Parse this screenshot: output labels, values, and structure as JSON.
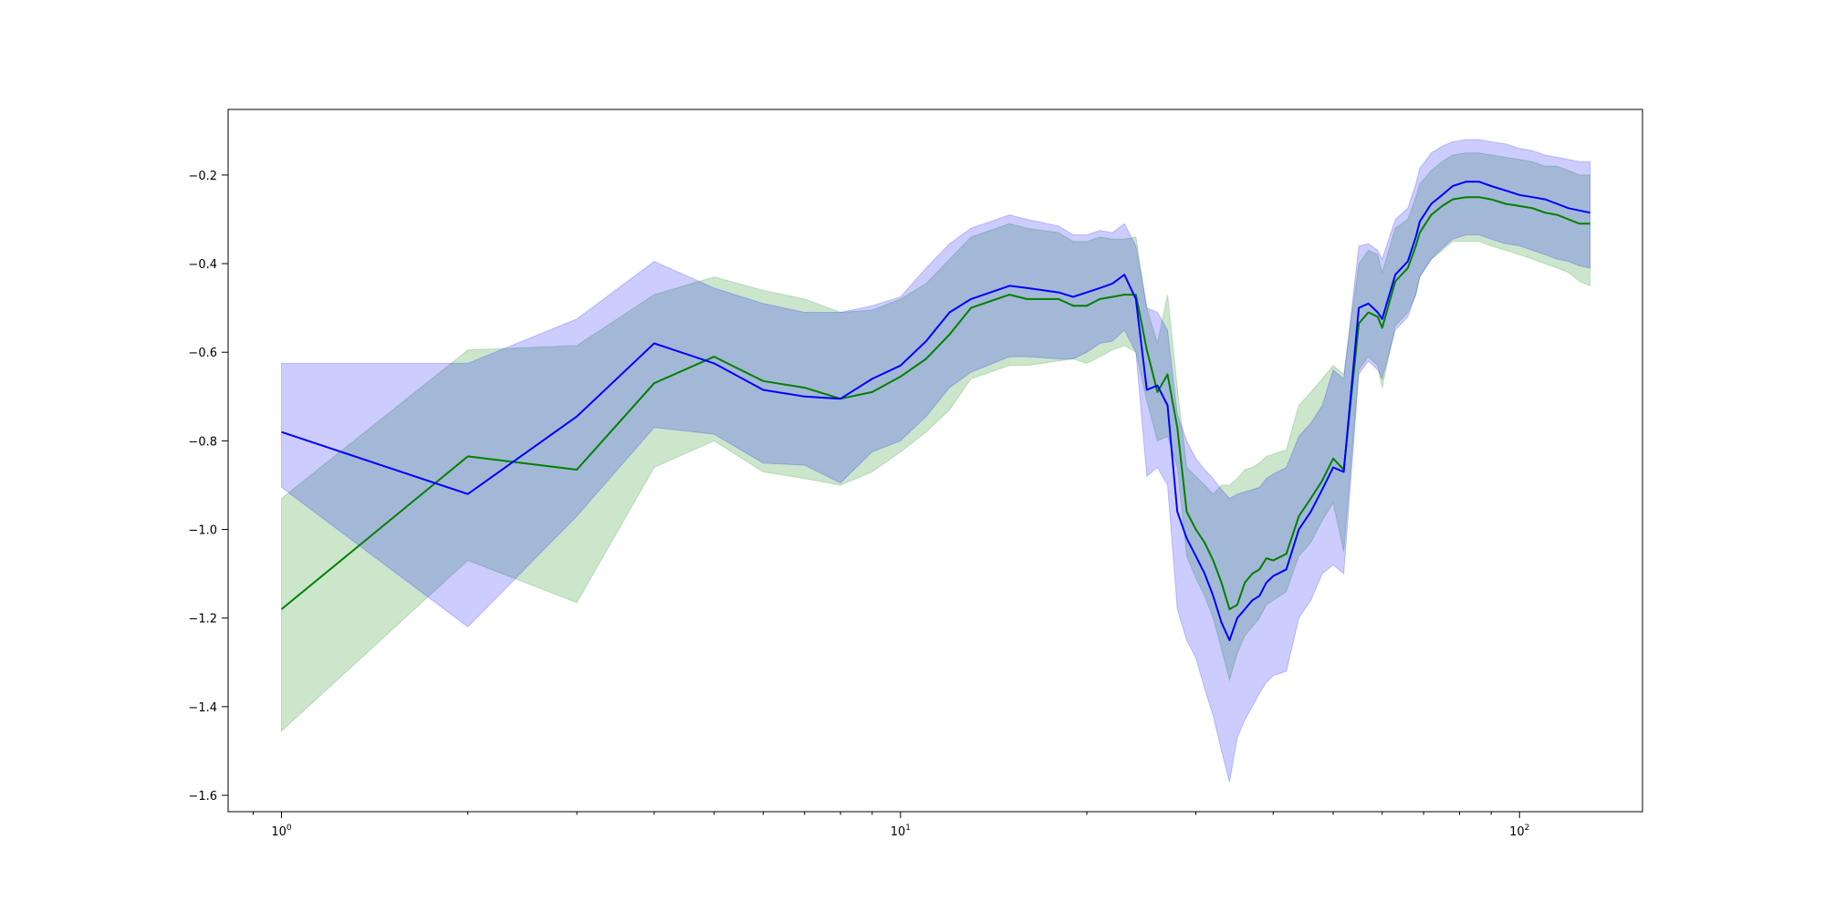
{
  "chart_data": {
    "type": "line",
    "title": "",
    "xlabel": "",
    "ylabel": "",
    "xscale": "log",
    "xlim": [
      0.82,
      158
    ],
    "ylim": [
      -1.637,
      -0.052
    ],
    "grid": false,
    "legend": "none",
    "x_ticks": [
      {
        "value": 1,
        "label": "10^0",
        "base": "10",
        "exp": "0"
      },
      {
        "value": 10,
        "label": "10^1",
        "base": "10",
        "exp": "1"
      },
      {
        "value": 100,
        "label": "10^2",
        "base": "10",
        "exp": "2"
      }
    ],
    "y_ticks": [
      {
        "value": -0.2,
        "label": "−0.2"
      },
      {
        "value": -0.4,
        "label": "−0.4"
      },
      {
        "value": -0.6,
        "label": "−0.6"
      },
      {
        "value": -0.8,
        "label": "−0.8"
      },
      {
        "value": -1.0,
        "label": "−1.0"
      },
      {
        "value": -1.2,
        "label": "−1.2"
      },
      {
        "value": -1.4,
        "label": "−1.4"
      },
      {
        "value": -1.6,
        "label": "−1.6"
      }
    ],
    "series": [
      {
        "color": "#008000",
        "band_color": "#008000",
        "x": [
          1,
          2,
          3,
          4,
          5,
          6,
          7,
          8,
          9,
          10,
          11,
          12,
          13,
          15,
          16,
          18,
          19,
          20,
          21,
          22,
          23,
          24,
          25,
          26,
          27,
          28,
          29,
          30,
          31,
          32,
          33,
          34,
          35,
          36,
          37,
          38,
          39,
          40,
          42,
          44,
          46,
          48,
          50,
          52,
          55,
          57,
          59,
          60,
          63,
          66,
          68,
          69,
          72,
          75,
          78,
          82,
          86,
          90,
          95,
          100,
          105,
          110,
          115,
          120,
          125,
          130
        ],
        "y": [
          -1.18,
          -0.835,
          -0.865,
          -0.67,
          -0.61,
          -0.665,
          -0.68,
          -0.705,
          -0.69,
          -0.655,
          -0.615,
          -0.56,
          -0.5,
          -0.47,
          -0.48,
          -0.48,
          -0.495,
          -0.495,
          -0.48,
          -0.475,
          -0.47,
          -0.47,
          -0.595,
          -0.69,
          -0.65,
          -0.77,
          -0.96,
          -1.0,
          -1.03,
          -1.07,
          -1.12,
          -1.18,
          -1.17,
          -1.12,
          -1.1,
          -1.09,
          -1.065,
          -1.07,
          -1.055,
          -0.97,
          -0.93,
          -0.89,
          -0.84,
          -0.865,
          -0.535,
          -0.51,
          -0.52,
          -0.545,
          -0.44,
          -0.41,
          -0.36,
          -0.33,
          -0.29,
          -0.27,
          -0.255,
          -0.25,
          -0.25,
          -0.255,
          -0.265,
          -0.27,
          -0.275,
          -0.285,
          -0.29,
          -0.3,
          -0.31,
          -0.31
        ],
        "lower": [
          -1.455,
          -1.07,
          -1.165,
          -0.86,
          -0.8,
          -0.87,
          -0.885,
          -0.9,
          -0.87,
          -0.825,
          -0.78,
          -0.73,
          -0.66,
          -0.63,
          -0.63,
          -0.62,
          -0.615,
          -0.625,
          -0.61,
          -0.595,
          -0.585,
          -0.6,
          -0.71,
          -0.8,
          -0.79,
          -0.86,
          -1.06,
          -1.11,
          -1.15,
          -1.2,
          -1.27,
          -1.34,
          -1.28,
          -1.24,
          -1.22,
          -1.2,
          -1.17,
          -1.16,
          -1.14,
          -1.06,
          -1.03,
          -0.98,
          -0.94,
          -1.05,
          -0.64,
          -0.61,
          -0.63,
          -0.68,
          -0.54,
          -0.51,
          -0.47,
          -0.43,
          -0.39,
          -0.37,
          -0.35,
          -0.35,
          -0.35,
          -0.36,
          -0.37,
          -0.38,
          -0.39,
          -0.4,
          -0.41,
          -0.42,
          -0.44,
          -0.45
        ],
        "upper": [
          -0.93,
          -0.595,
          -0.585,
          -0.47,
          -0.43,
          -0.46,
          -0.48,
          -0.51,
          -0.505,
          -0.48,
          -0.445,
          -0.39,
          -0.34,
          -0.31,
          -0.32,
          -0.33,
          -0.35,
          -0.35,
          -0.34,
          -0.345,
          -0.345,
          -0.34,
          -0.5,
          -0.58,
          -0.47,
          -0.68,
          -0.86,
          -0.88,
          -0.9,
          -0.92,
          -0.9,
          -0.9,
          -0.885,
          -0.865,
          -0.86,
          -0.85,
          -0.835,
          -0.83,
          -0.82,
          -0.72,
          -0.69,
          -0.66,
          -0.63,
          -0.65,
          -0.4,
          -0.37,
          -0.38,
          -0.42,
          -0.32,
          -0.3,
          -0.25,
          -0.22,
          -0.19,
          -0.17,
          -0.155,
          -0.15,
          -0.15,
          -0.155,
          -0.16,
          -0.165,
          -0.17,
          -0.18,
          -0.18,
          -0.19,
          -0.2,
          -0.2
        ]
      },
      {
        "color": "#0000ff",
        "band_color": "#0000ff",
        "x": [
          1,
          2,
          3,
          4,
          5,
          6,
          7,
          8,
          9,
          10,
          11,
          12,
          13,
          15,
          16,
          18,
          19,
          20,
          21,
          22,
          23,
          24,
          25,
          26,
          27,
          28,
          29,
          30,
          31,
          32,
          33,
          34,
          35,
          36,
          37,
          38,
          39,
          40,
          42,
          44,
          46,
          48,
          50,
          52,
          55,
          57,
          59,
          60,
          63,
          66,
          68,
          69,
          72,
          75,
          78,
          82,
          86,
          90,
          95,
          100,
          105,
          110,
          115,
          120,
          125,
          130
        ],
        "y": [
          -0.78,
          -0.92,
          -0.745,
          -0.58,
          -0.625,
          -0.685,
          -0.7,
          -0.705,
          -0.66,
          -0.63,
          -0.575,
          -0.51,
          -0.48,
          -0.45,
          -0.455,
          -0.465,
          -0.475,
          -0.465,
          -0.455,
          -0.445,
          -0.425,
          -0.48,
          -0.685,
          -0.675,
          -0.72,
          -0.96,
          -1.02,
          -1.06,
          -1.1,
          -1.15,
          -1.21,
          -1.25,
          -1.2,
          -1.18,
          -1.16,
          -1.15,
          -1.12,
          -1.105,
          -1.09,
          -1.0,
          -0.96,
          -0.91,
          -0.86,
          -0.87,
          -0.5,
          -0.49,
          -0.51,
          -0.525,
          -0.425,
          -0.395,
          -0.34,
          -0.305,
          -0.265,
          -0.245,
          -0.225,
          -0.215,
          -0.215,
          -0.225,
          -0.235,
          -0.245,
          -0.25,
          -0.255,
          -0.265,
          -0.275,
          -0.28,
          -0.285
        ],
        "lower": [
          -0.905,
          -1.22,
          -0.97,
          -0.77,
          -0.785,
          -0.85,
          -0.855,
          -0.895,
          -0.825,
          -0.8,
          -0.745,
          -0.68,
          -0.645,
          -0.61,
          -0.61,
          -0.615,
          -0.615,
          -0.6,
          -0.58,
          -0.575,
          -0.55,
          -0.6,
          -0.88,
          -0.86,
          -0.9,
          -1.18,
          -1.25,
          -1.29,
          -1.36,
          -1.42,
          -1.5,
          -1.57,
          -1.47,
          -1.43,
          -1.4,
          -1.37,
          -1.345,
          -1.33,
          -1.32,
          -1.2,
          -1.16,
          -1.1,
          -1.08,
          -1.1,
          -0.65,
          -0.62,
          -0.64,
          -0.66,
          -0.55,
          -0.52,
          -0.47,
          -0.43,
          -0.39,
          -0.365,
          -0.345,
          -0.335,
          -0.335,
          -0.345,
          -0.355,
          -0.36,
          -0.37,
          -0.38,
          -0.39,
          -0.395,
          -0.405,
          -0.41
        ],
        "upper": [
          -0.625,
          -0.625,
          -0.525,
          -0.395,
          -0.455,
          -0.49,
          -0.51,
          -0.51,
          -0.495,
          -0.475,
          -0.41,
          -0.355,
          -0.32,
          -0.29,
          -0.3,
          -0.315,
          -0.335,
          -0.335,
          -0.325,
          -0.33,
          -0.31,
          -0.36,
          -0.5,
          -0.51,
          -0.55,
          -0.74,
          -0.8,
          -0.84,
          -0.865,
          -0.885,
          -0.91,
          -0.93,
          -0.92,
          -0.915,
          -0.91,
          -0.905,
          -0.885,
          -0.875,
          -0.86,
          -0.79,
          -0.76,
          -0.72,
          -0.64,
          -0.66,
          -0.36,
          -0.355,
          -0.37,
          -0.39,
          -0.3,
          -0.275,
          -0.22,
          -0.185,
          -0.15,
          -0.135,
          -0.125,
          -0.12,
          -0.12,
          -0.125,
          -0.13,
          -0.14,
          -0.145,
          -0.155,
          -0.16,
          -0.165,
          -0.17,
          -0.17
        ]
      }
    ]
  }
}
